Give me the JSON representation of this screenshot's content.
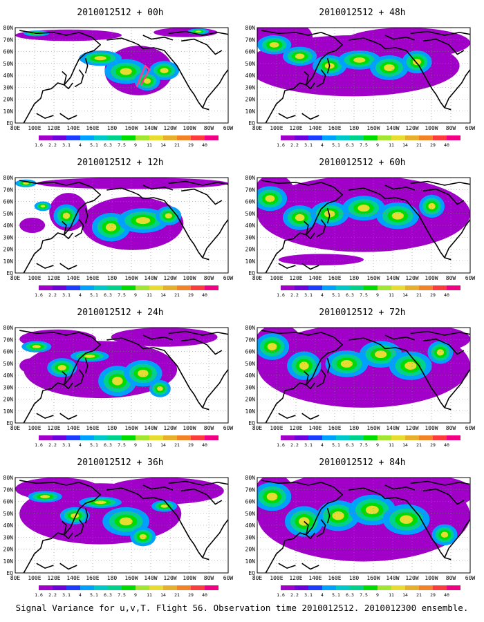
{
  "figure": {
    "caption": "Signal Variance for u,v,T. Flight 56. Observation time 2010012512. 2010012300 ensemble."
  },
  "panels": [
    {
      "title": "2010012512 + 00h",
      "lead_hours": 0
    },
    {
      "title": "2010012512 + 48h",
      "lead_hours": 48
    },
    {
      "title": "2010012512 + 12h",
      "lead_hours": 12
    },
    {
      "title": "2010012512 + 60h",
      "lead_hours": 60
    },
    {
      "title": "2010012512 + 24h",
      "lead_hours": 24
    },
    {
      "title": "2010012512 + 72h",
      "lead_hours": 72
    },
    {
      "title": "2010012512 + 36h",
      "lead_hours": 36
    },
    {
      "title": "2010012512 + 84h",
      "lead_hours": 84
    }
  ],
  "map": {
    "lon_labels": [
      "80E",
      "100E",
      "120E",
      "140E",
      "160E",
      "180",
      "160W",
      "140W",
      "120W",
      "100W",
      "80W",
      "60W"
    ],
    "lat_labels": [
      "EQ",
      "10N",
      "20N",
      "30N",
      "40N",
      "50N",
      "60N",
      "70N",
      "80N"
    ],
    "lon_range": [
      "80E",
      "60W"
    ],
    "lat_range": [
      "EQ",
      "80N"
    ],
    "gridlines": "dotted",
    "coastline_color": "#000000"
  },
  "colorbar": {
    "levels": [
      "1.6",
      "2.2",
      "3.1",
      "4",
      "5.1",
      "6.3",
      "7.5",
      "9",
      "11",
      "14",
      "21",
      "29",
      "40"
    ],
    "colors": [
      "#a000c8",
      "#6e00dc",
      "#1e3cff",
      "#00a0ff",
      "#00c8c8",
      "#00d28c",
      "#00dc00",
      "#a0e632",
      "#e6dc32",
      "#e6af2d",
      "#f08228",
      "#fa3c3c",
      "#f00082"
    ]
  },
  "features": {
    "observation_track_color": "#ff3c8c"
  }
}
